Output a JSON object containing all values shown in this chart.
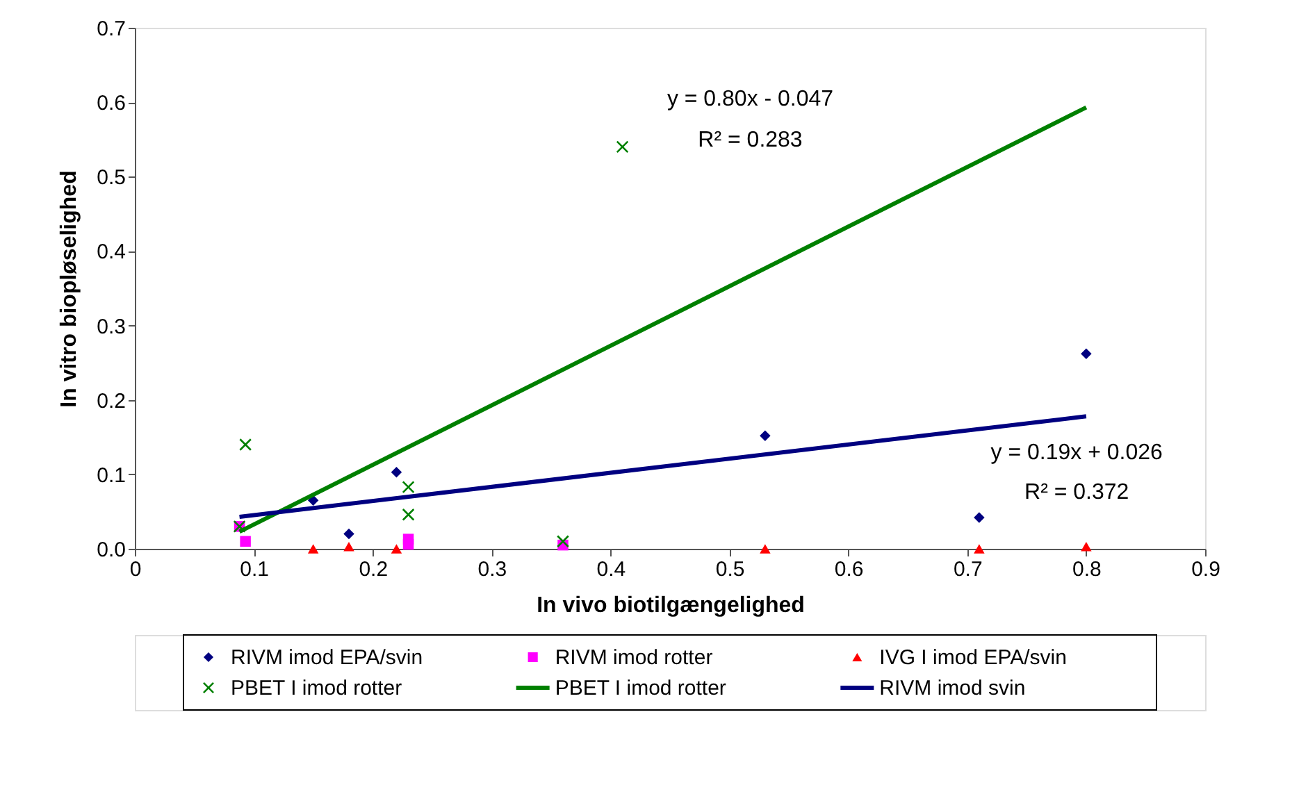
{
  "chart_data": {
    "type": "scatter",
    "xlabel": "In vivo biotilgængelighed",
    "ylabel": "In vitro biopløselighed",
    "xlim": [
      0,
      0.9
    ],
    "xticks": [
      0,
      0.1,
      0.2,
      0.3,
      0.4,
      0.5,
      0.6,
      0.7,
      0.8,
      0.9
    ],
    "ylim": [
      0,
      0.7
    ],
    "yticks": [
      {
        "value": 0,
        "label": "0.0"
      },
      0.1,
      0.2,
      0.3,
      0.4,
      0.5,
      0.6,
      0.7
    ],
    "grid": false,
    "legend": "bottom",
    "series": [
      {
        "name": "RIVM imod EPA/svin",
        "marker": "diamond",
        "color": "#000080",
        "x": [
          0.15,
          0.18,
          0.22,
          0.53,
          0.71,
          0.8
        ],
        "values": [
          0.065,
          0.02,
          0.103,
          0.152,
          0.042,
          0.262
        ]
      },
      {
        "name": "RIVM imod rotter",
        "marker": "square",
        "color": "#ff00ff",
        "x": [
          0.088,
          0.093,
          0.23,
          0.23,
          0.36
        ],
        "values": [
          0.03,
          0.01,
          0.013,
          0.006,
          0.005
        ]
      },
      {
        "name": "IVG I imod EPA/svin",
        "marker": "triangle",
        "color": "#ff0000",
        "x": [
          0.15,
          0.18,
          0.22,
          0.53,
          0.71,
          0.8
        ],
        "values": [
          0.0,
          0.003,
          0.0,
          0.0,
          0.0,
          0.003
        ]
      },
      {
        "name": "PBET I imod rotter",
        "marker": "cross",
        "color": "#008000",
        "x": [
          0.088,
          0.093,
          0.23,
          0.23,
          0.36,
          0.41
        ],
        "values": [
          0.03,
          0.14,
          0.083,
          0.046,
          0.01,
          0.54
        ]
      },
      {
        "name": "PBET I imod rotter",
        "type": "line",
        "marker": "none",
        "color": "#008000",
        "x": [
          0.088,
          0.8
        ],
        "values": [
          0.023,
          0.593
        ]
      },
      {
        "name": "RIVM imod svin",
        "type": "line",
        "marker": "none",
        "color": "#000080",
        "x": [
          0.088,
          0.8
        ],
        "values": [
          0.043,
          0.178
        ]
      }
    ],
    "annotations": [
      "y = 0.80x - 0.047",
      "R² = 0.283",
      "y = 0.19x + 0.026",
      "R² = 0.372"
    ]
  }
}
